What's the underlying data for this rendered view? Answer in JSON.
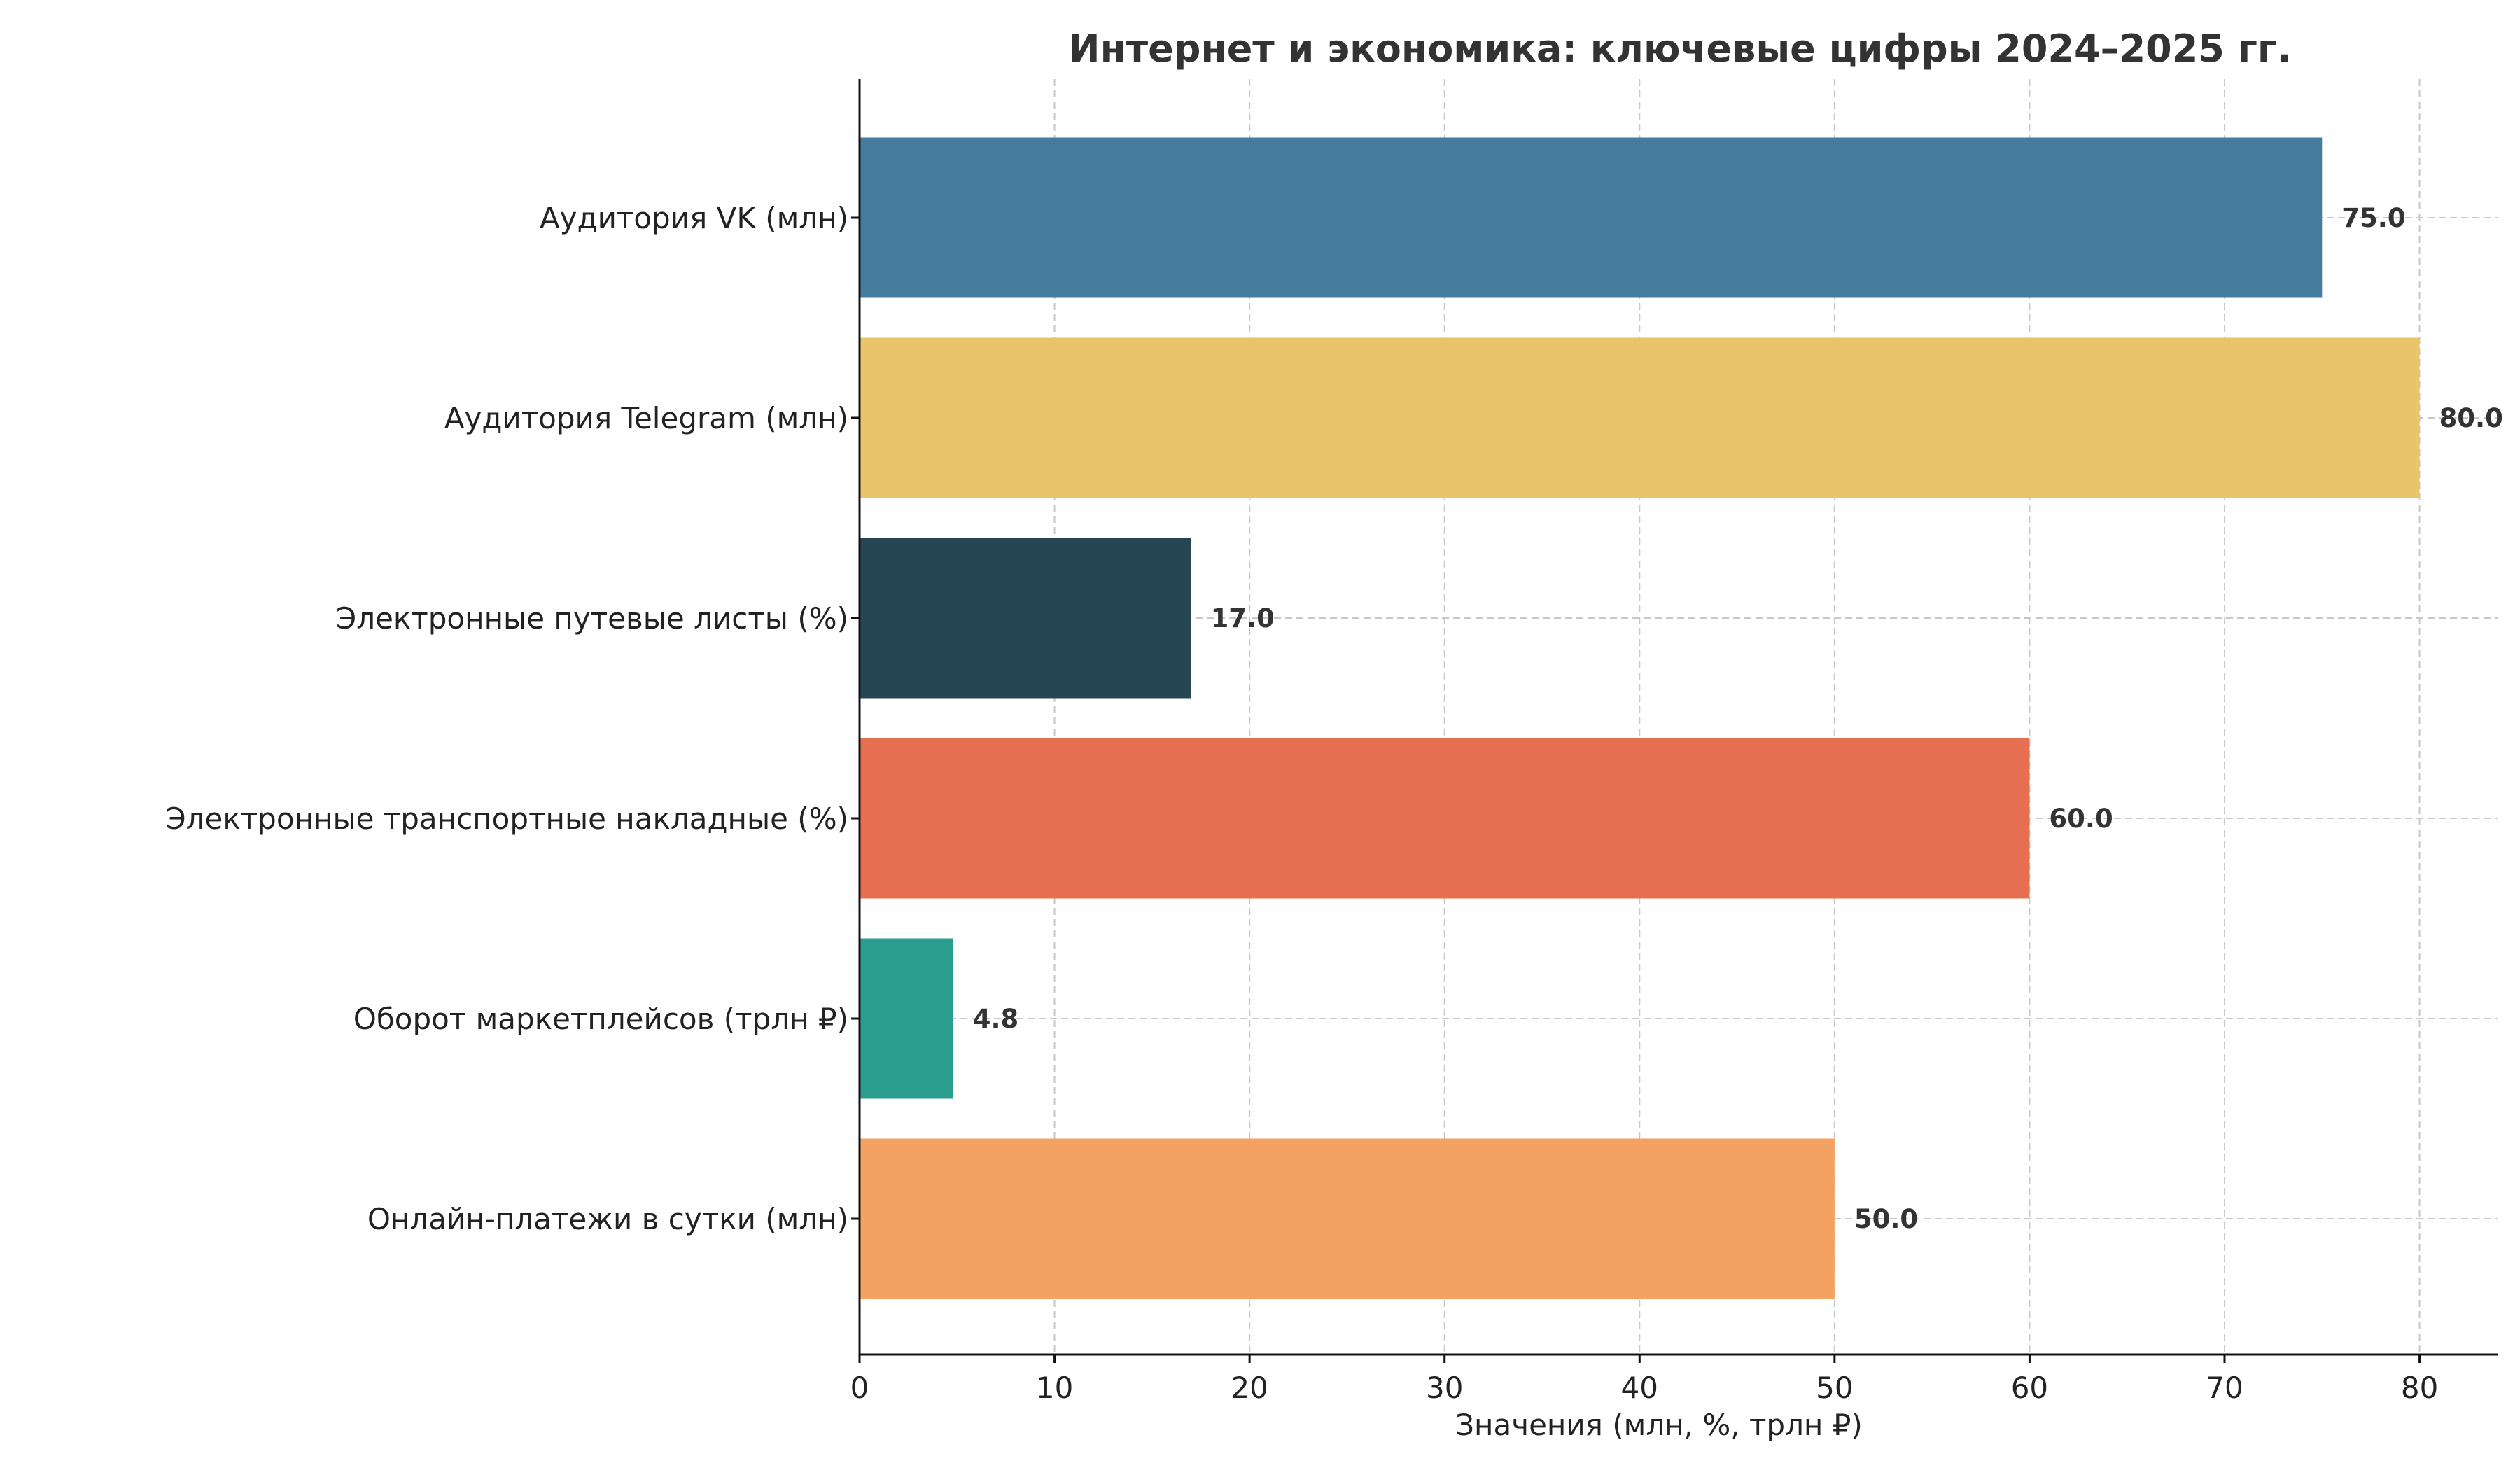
{
  "chart_data": {
    "type": "bar",
    "orientation": "horizontal",
    "title": "Интернет и экономика: ключевые цифры 2024–2025 гг.",
    "xlabel": "Значения (млн, %, трлн ₽)",
    "ylabel": "",
    "categories": [
      "Аудитория VK (млн)",
      "Аудитория Telegram (млн)",
      "Электронные путевые листы (%)",
      "Электронные транспортные накладные (%)",
      "Оборот маркетплейсов (трлн ₽)",
      "Онлайн-платежи в сутки (млн)"
    ],
    "values": [
      75.0,
      80.0,
      17.0,
      60.0,
      4.8,
      50.0
    ],
    "value_labels": [
      "75.0",
      "80.0",
      "17.0",
      "60.0",
      "4.8",
      "50.0"
    ],
    "colors": [
      "#457b9d",
      "#e9c46a",
      "#264653",
      "#e76f51",
      "#2a9d8f",
      "#f4a261"
    ],
    "xticks": [
      0,
      10,
      20,
      30,
      40,
      50,
      60,
      70,
      80
    ],
    "xlim": [
      0,
      84
    ],
    "grid": true,
    "legend": "none"
  }
}
